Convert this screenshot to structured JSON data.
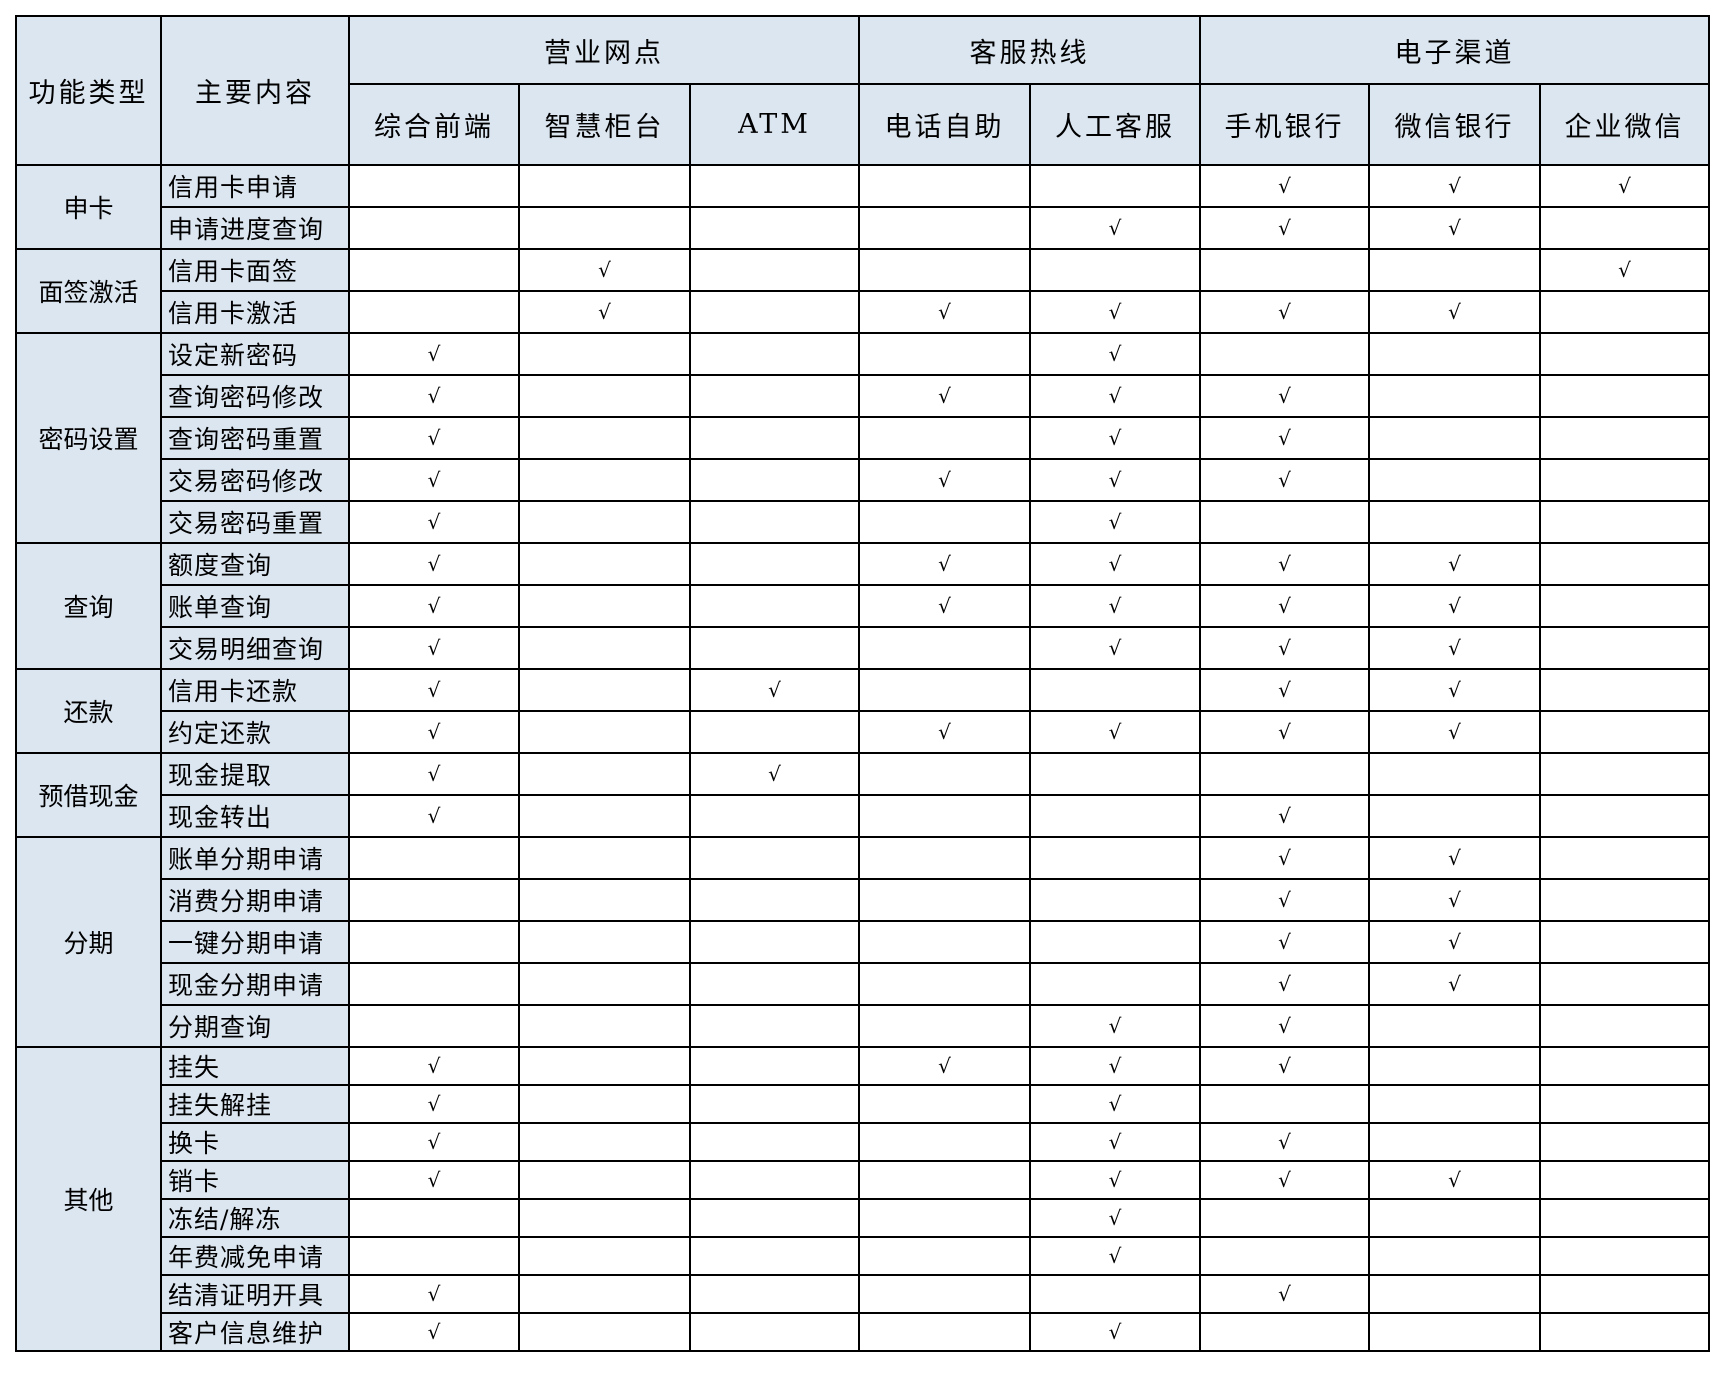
{
  "header": {
    "function_type": "功能类型",
    "main_content": "主要内容",
    "groups": [
      {
        "label": "营业网点",
        "span": 3
      },
      {
        "label": "客服热线",
        "span": 2
      },
      {
        "label": "电子渠道",
        "span": 3
      }
    ],
    "channels": [
      "综合前端",
      "智慧柜台",
      "ATM",
      "电话自助",
      "人工客服",
      "手机银行",
      "微信银行",
      "企业微信"
    ]
  },
  "check_symbol": "√",
  "header_color": "#dce6f1",
  "categories": [
    {
      "name": "申卡",
      "items": [
        {
          "label": "信用卡申请",
          "checks": [
            0,
            0,
            0,
            0,
            0,
            1,
            1,
            1
          ]
        },
        {
          "label": "申请进度查询",
          "checks": [
            0,
            0,
            0,
            0,
            1,
            1,
            1,
            0
          ]
        }
      ]
    },
    {
      "name": "面签激活",
      "items": [
        {
          "label": "信用卡面签",
          "checks": [
            0,
            1,
            0,
            0,
            0,
            0,
            0,
            1
          ]
        },
        {
          "label": "信用卡激活",
          "checks": [
            0,
            1,
            0,
            1,
            1,
            1,
            1,
            0
          ]
        }
      ]
    },
    {
      "name": "密码设置",
      "items": [
        {
          "label": "设定新密码",
          "checks": [
            1,
            0,
            0,
            0,
            1,
            0,
            0,
            0
          ]
        },
        {
          "label": "查询密码修改",
          "checks": [
            1,
            0,
            0,
            1,
            1,
            1,
            0,
            0
          ]
        },
        {
          "label": "查询密码重置",
          "checks": [
            1,
            0,
            0,
            0,
            1,
            1,
            0,
            0
          ]
        },
        {
          "label": "交易密码修改",
          "checks": [
            1,
            0,
            0,
            1,
            1,
            1,
            0,
            0
          ]
        },
        {
          "label": "交易密码重置",
          "checks": [
            1,
            0,
            0,
            0,
            1,
            0,
            0,
            0
          ]
        }
      ]
    },
    {
      "name": "查询",
      "items": [
        {
          "label": "额度查询",
          "checks": [
            1,
            0,
            0,
            1,
            1,
            1,
            1,
            0
          ]
        },
        {
          "label": "账单查询",
          "checks": [
            1,
            0,
            0,
            1,
            1,
            1,
            1,
            0
          ]
        },
        {
          "label": "交易明细查询",
          "checks": [
            1,
            0,
            0,
            0,
            1,
            1,
            1,
            0
          ]
        }
      ]
    },
    {
      "name": "还款",
      "items": [
        {
          "label": "信用卡还款",
          "checks": [
            1,
            0,
            1,
            0,
            0,
            1,
            1,
            0
          ]
        },
        {
          "label": "约定还款",
          "checks": [
            1,
            0,
            0,
            1,
            1,
            1,
            1,
            0
          ]
        }
      ]
    },
    {
      "name": "预借现金",
      "items": [
        {
          "label": "现金提取",
          "checks": [
            1,
            0,
            1,
            0,
            0,
            0,
            0,
            0
          ]
        },
        {
          "label": "现金转出",
          "checks": [
            1,
            0,
            0,
            0,
            0,
            1,
            0,
            0
          ]
        }
      ]
    },
    {
      "name": "分期",
      "items": [
        {
          "label": "账单分期申请",
          "checks": [
            0,
            0,
            0,
            0,
            0,
            1,
            1,
            0
          ]
        },
        {
          "label": "消费分期申请",
          "checks": [
            0,
            0,
            0,
            0,
            0,
            1,
            1,
            0
          ]
        },
        {
          "label": "一键分期申请",
          "checks": [
            0,
            0,
            0,
            0,
            0,
            1,
            1,
            0
          ]
        },
        {
          "label": "现金分期申请",
          "checks": [
            0,
            0,
            0,
            0,
            0,
            1,
            1,
            0
          ]
        },
        {
          "label": "分期查询",
          "checks": [
            0,
            0,
            0,
            0,
            1,
            1,
            0,
            0
          ]
        }
      ]
    },
    {
      "name": "其他",
      "compact": true,
      "items": [
        {
          "label": "挂失",
          "checks": [
            1,
            0,
            0,
            1,
            1,
            1,
            0,
            0
          ]
        },
        {
          "label": "挂失解挂",
          "checks": [
            1,
            0,
            0,
            0,
            1,
            0,
            0,
            0
          ]
        },
        {
          "label": "换卡",
          "checks": [
            1,
            0,
            0,
            0,
            1,
            1,
            0,
            0
          ]
        },
        {
          "label": "销卡",
          "checks": [
            1,
            0,
            0,
            0,
            1,
            1,
            1,
            0
          ]
        },
        {
          "label": "冻结/解冻",
          "checks": [
            0,
            0,
            0,
            0,
            1,
            0,
            0,
            0
          ]
        },
        {
          "label": "年费减免申请",
          "checks": [
            0,
            0,
            0,
            0,
            1,
            0,
            0,
            0
          ]
        },
        {
          "label": "结清证明开具",
          "checks": [
            1,
            0,
            0,
            0,
            0,
            1,
            0,
            0
          ]
        },
        {
          "label": "客户信息维护",
          "checks": [
            1,
            0,
            0,
            0,
            1,
            0,
            0,
            0
          ]
        }
      ]
    }
  ]
}
